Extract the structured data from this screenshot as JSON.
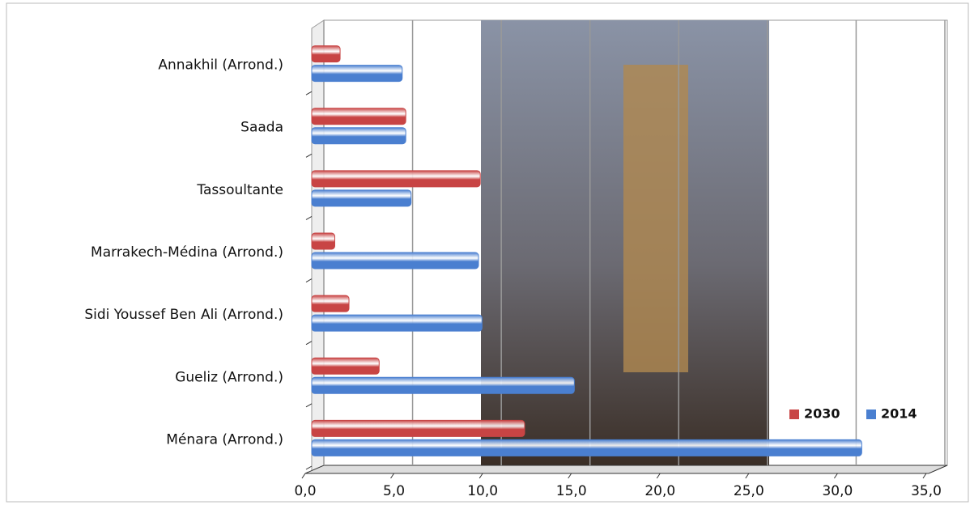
{
  "chart_data": {
    "type": "bar",
    "orientation": "horizontal",
    "categories": [
      "Ménara (Arrond.)",
      "Gueliz (Arrond.)",
      "Sidi Youssef Ben Ali (Arrond.)",
      "Marrakech-Médina (Arrond.)",
      "Tassoultante",
      "Saada",
      "Annakhil (Arrond.)"
    ],
    "series": [
      {
        "name": "2014",
        "color": "#4a7fd0",
        "values": [
          31.0,
          14.8,
          9.6,
          9.4,
          5.6,
          5.3,
          5.1
        ]
      },
      {
        "name": "2030",
        "color": "#c84444",
        "values": [
          12.0,
          3.8,
          2.1,
          1.3,
          9.5,
          5.3,
          1.6
        ]
      }
    ],
    "xlim": [
      0,
      35
    ],
    "xticks": [
      {
        "value": 0,
        "label": "0,0"
      },
      {
        "value": 5,
        "label": "5,0"
      },
      {
        "value": 10,
        "label": "10,0"
      },
      {
        "value": 15,
        "label": "15,0"
      },
      {
        "value": 20,
        "label": "20,0"
      },
      {
        "value": 25,
        "label": "25,0"
      },
      {
        "value": 30,
        "label": "30,0"
      },
      {
        "value": 35,
        "label": "35,0"
      }
    ],
    "grid": true,
    "legend": "lower right"
  }
}
